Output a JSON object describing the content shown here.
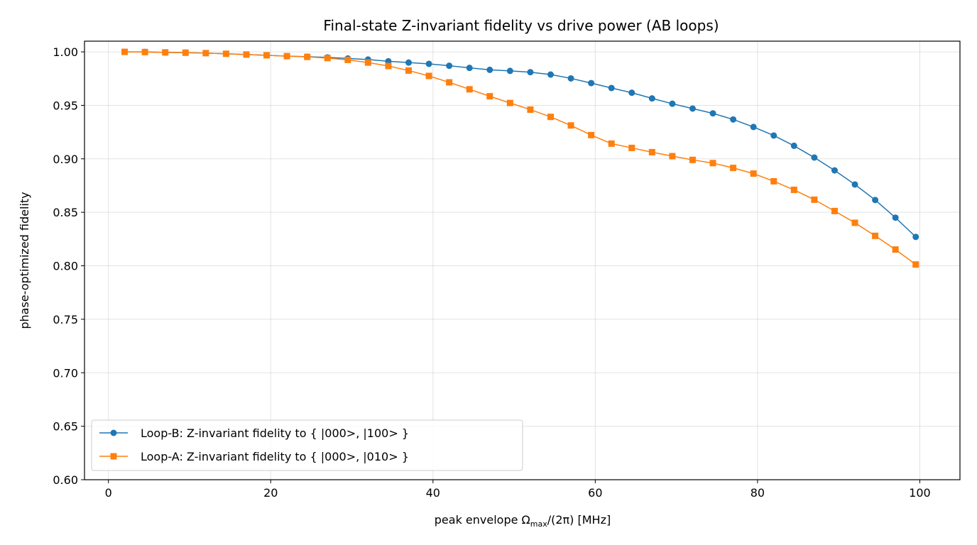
{
  "chart_data": {
    "type": "line",
    "title": "Final-state Z-invariant fidelity vs drive power (AB loops)",
    "xlabel_main": "peak envelope Ω",
    "xlabel_sub": "max",
    "xlabel_tail": "/(2π) [MHz]",
    "ylabel": "phase-optimized fidelity",
    "xlim": [
      -2.95,
      104.95
    ],
    "ylim": [
      0.6,
      1.01
    ],
    "xticks": [
      0,
      20,
      40,
      60,
      80,
      100
    ],
    "xtick_labels": [
      "0",
      "20",
      "40",
      "60",
      "80",
      "100"
    ],
    "yticks": [
      0.6,
      0.65,
      0.7,
      0.75,
      0.8,
      0.85,
      0.9,
      0.95,
      1.0
    ],
    "ytick_labels": [
      "0.60",
      "0.65",
      "0.70",
      "0.75",
      "0.80",
      "0.85",
      "0.90",
      "0.95",
      "1.00"
    ],
    "grid": true,
    "legend_position": "lower-left",
    "x": [
      2.0,
      4.5,
      7.0,
      9.5,
      12.0,
      14.5,
      17.0,
      19.5,
      22.0,
      24.5,
      27.0,
      29.5,
      32.0,
      34.5,
      37.0,
      39.5,
      42.0,
      44.5,
      47.0,
      49.5,
      52.0,
      54.5,
      57.0,
      59.5,
      62.0,
      64.5,
      67.0,
      69.5,
      72.0,
      74.5,
      77.0,
      79.5,
      82.0,
      84.5,
      87.0,
      89.5,
      92.0,
      94.5,
      97.0,
      99.5
    ],
    "series": [
      {
        "name": "Loop-B: Z-invariant fidelity to { |000>, |100> }",
        "color": "#1f77b4",
        "marker": "circle",
        "values": [
          1.0,
          1.0,
          0.9995,
          0.9993,
          0.9988,
          0.9982,
          0.9975,
          0.9968,
          0.996,
          0.9955,
          0.9948,
          0.9938,
          0.9928,
          0.9912,
          0.99,
          0.9888,
          0.987,
          0.985,
          0.9832,
          0.9822,
          0.981,
          0.9788,
          0.9752,
          0.9708,
          0.9662,
          0.9618,
          0.9565,
          0.9515,
          0.947,
          0.9425,
          0.9368,
          0.9298,
          0.9218,
          0.9122,
          0.9012,
          0.8892,
          0.876,
          0.8615,
          0.845,
          0.827
        ]
      },
      {
        "name": "Loop-A: Z-invariant fidelity to { |000>, |010> }",
        "color": "#ff7f0e",
        "marker": "square",
        "values": [
          1.0,
          0.9998,
          0.9995,
          0.9992,
          0.9988,
          0.9982,
          0.9975,
          0.9968,
          0.996,
          0.9953,
          0.9942,
          0.9925,
          0.99,
          0.9868,
          0.9825,
          0.9775,
          0.9715,
          0.965,
          0.9585,
          0.9522,
          0.946,
          0.9392,
          0.9312,
          0.9222,
          0.9142,
          0.9102,
          0.9062,
          0.9025,
          0.899,
          0.896,
          0.8915,
          0.8862,
          0.879,
          0.871,
          0.8618,
          0.8512,
          0.8402,
          0.828,
          0.8152,
          0.8012
        ]
      }
    ]
  }
}
